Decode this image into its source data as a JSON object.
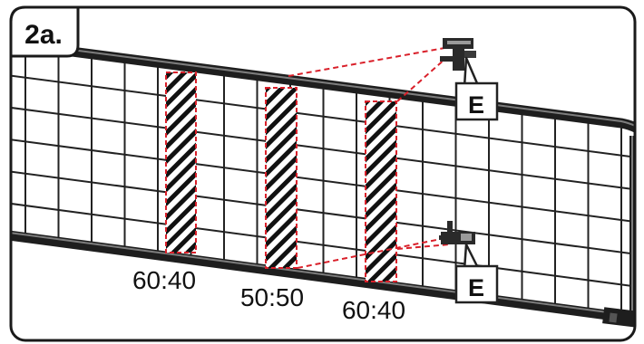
{
  "step_label": "2a.",
  "position_labels": [
    "60:40",
    "50:50",
    "60:40"
  ],
  "part_labels": [
    "E",
    "E"
  ],
  "colors": {
    "frame": "#222222",
    "frame_highlight": "#8a8a8a",
    "grid": "#222222",
    "accent": "#d9202a",
    "background": "#ffffff"
  },
  "icons": [
    "bracket-clip-icon",
    "bracket-clip-icon"
  ]
}
